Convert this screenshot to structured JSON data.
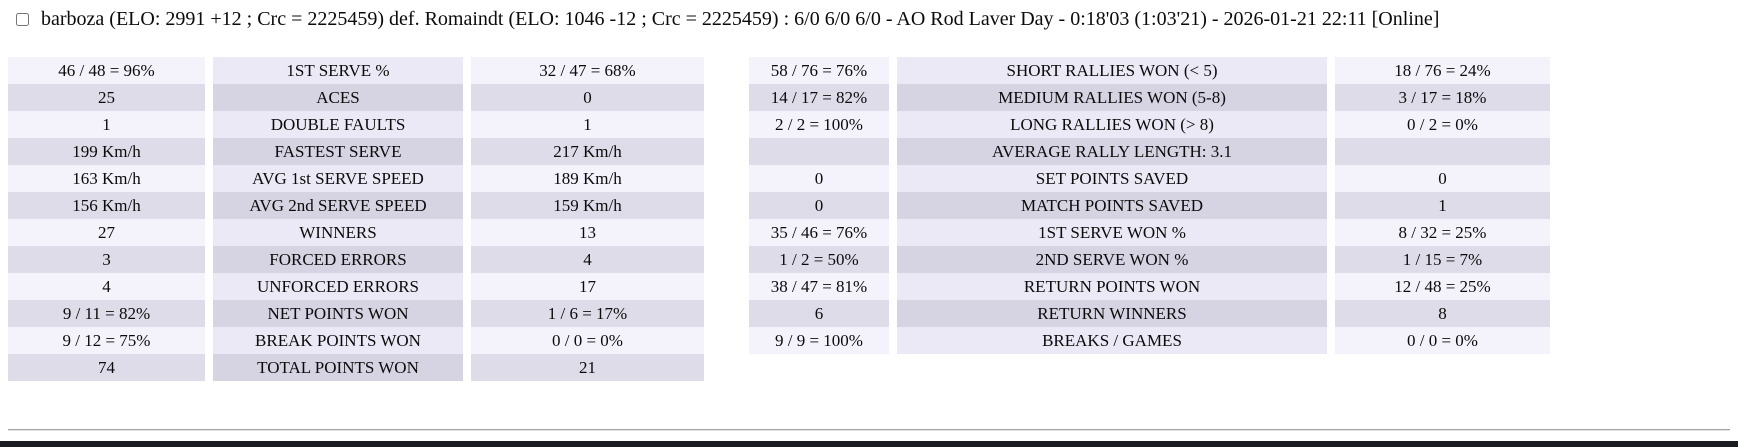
{
  "header": {
    "checkbox_checked": false,
    "match_summary": "barboza (ELO: 2991 +12 ; Crc = 2225459) def. Romaindt (ELO: 1046 -12 ; Crc = 2225459) : 6/0 6/0 6/0 - AO Rod Laver Day - 0:18'03 (1:03'21) - 2026-01-21 22:11 [Online]"
  },
  "colors": {
    "row_odd_side": "#f4f2fb",
    "row_odd_label": "#ebe9f5",
    "row_even_side": "#dedce9",
    "row_even_label": "#d6d3e2",
    "bottom_bar": "#1b1b22",
    "text": "#0b0b0b"
  },
  "tables": [
    {
      "name": "serve-stats-table",
      "rows": [
        [
          "46 / 48 = 96%",
          "1ST SERVE %",
          "32 / 47 = 68%"
        ],
        [
          "25",
          "ACES",
          "0"
        ],
        [
          "1",
          "DOUBLE FAULTS",
          "1"
        ],
        [
          "199 Km/h",
          "FASTEST SERVE",
          "217 Km/h"
        ],
        [
          "163 Km/h",
          "AVG 1st SERVE SPEED",
          "189 Km/h"
        ],
        [
          "156 Km/h",
          "AVG 2nd SERVE SPEED",
          "159 Km/h"
        ],
        [
          "27",
          "WINNERS",
          "13"
        ],
        [
          "3",
          "FORCED ERRORS",
          "4"
        ],
        [
          "4",
          "UNFORCED ERRORS",
          "17"
        ],
        [
          "9 / 11 = 82%",
          "NET POINTS WON",
          "1 / 6 = 17%"
        ],
        [
          "9 / 12 = 75%",
          "BREAK POINTS WON",
          "0 / 0 = 0%"
        ],
        [
          "74",
          "TOTAL POINTS WON",
          "21"
        ]
      ]
    },
    {
      "name": "rally-stats-table",
      "rows": [
        [
          "58 / 76 = 76%",
          "SHORT RALLIES WON (< 5)",
          "18 / 76 = 24%"
        ],
        [
          "14 / 17 = 82%",
          "MEDIUM RALLIES WON (5-8)",
          "3 / 17 = 18%"
        ],
        [
          "2 / 2 = 100%",
          "LONG RALLIES WON (> 8)",
          "0 / 2 = 0%"
        ],
        [
          "",
          "AVERAGE RALLY LENGTH: 3.1",
          ""
        ],
        [
          "0",
          "SET POINTS SAVED",
          "0"
        ],
        [
          "0",
          "MATCH POINTS SAVED",
          "1"
        ],
        [
          "35 / 46 = 76%",
          "1ST SERVE WON %",
          "8 / 32 = 25%"
        ],
        [
          "1 / 2 = 50%",
          "2ND SERVE WON %",
          "1 / 15 = 7%"
        ],
        [
          "38 / 47 = 81%",
          "RETURN POINTS WON",
          "12 / 48 = 25%"
        ],
        [
          "6",
          "RETURN WINNERS",
          "8"
        ],
        [
          "9 / 9 = 100%",
          "BREAKS / GAMES",
          "0 / 0 = 0%"
        ]
      ]
    }
  ]
}
